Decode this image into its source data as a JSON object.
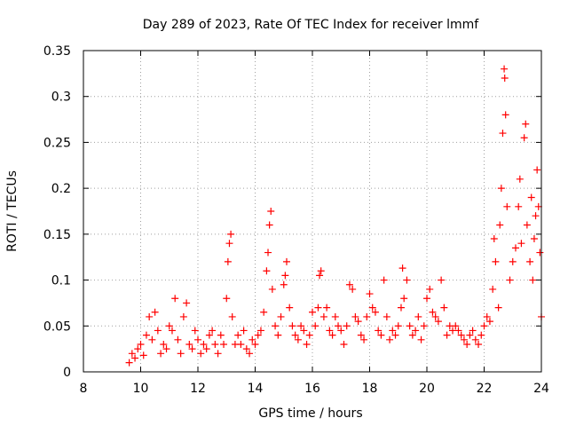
{
  "chart_data": {
    "type": "scatter",
    "title": "Day 289 of 2023, Rate Of TEC Index for receiver lmmf",
    "xlabel": "GPS time / hours",
    "ylabel": "ROTI / TECUs",
    "xlim": [
      8,
      24
    ],
    "ylim": [
      0,
      0.35
    ],
    "xticks": [
      "8",
      "10",
      "12",
      "14",
      "16",
      "18",
      "20",
      "22",
      "24"
    ],
    "yticks": [
      "0",
      "0.05",
      "0.1",
      "0.15",
      "0.2",
      "0.25",
      "0.3",
      "0.35"
    ],
    "grid": true,
    "marker": "+",
    "marker_color": "#ff0000",
    "series": [
      {
        "name": "ROTI",
        "points": [
          [
            9.6,
            0.01
          ],
          [
            9.7,
            0.02
          ],
          [
            9.8,
            0.015
          ],
          [
            9.9,
            0.025
          ],
          [
            10.0,
            0.03
          ],
          [
            10.1,
            0.018
          ],
          [
            10.2,
            0.04
          ],
          [
            10.3,
            0.06
          ],
          [
            10.4,
            0.035
          ],
          [
            10.5,
            0.065
          ],
          [
            10.6,
            0.045
          ],
          [
            10.7,
            0.02
          ],
          [
            10.8,
            0.03
          ],
          [
            10.9,
            0.025
          ],
          [
            11.0,
            0.05
          ],
          [
            11.1,
            0.045
          ],
          [
            11.2,
            0.08
          ],
          [
            11.3,
            0.035
          ],
          [
            11.4,
            0.02
          ],
          [
            11.5,
            0.06
          ],
          [
            11.6,
            0.075
          ],
          [
            11.7,
            0.03
          ],
          [
            11.8,
            0.025
          ],
          [
            11.9,
            0.045
          ],
          [
            12.0,
            0.035
          ],
          [
            12.1,
            0.02
          ],
          [
            12.2,
            0.03
          ],
          [
            12.3,
            0.025
          ],
          [
            12.4,
            0.04
          ],
          [
            12.5,
            0.045
          ],
          [
            12.6,
            0.03
          ],
          [
            12.7,
            0.02
          ],
          [
            12.8,
            0.04
          ],
          [
            12.9,
            0.03
          ],
          [
            13.0,
            0.08
          ],
          [
            13.05,
            0.12
          ],
          [
            13.1,
            0.14
          ],
          [
            13.15,
            0.15
          ],
          [
            13.2,
            0.06
          ],
          [
            13.3,
            0.03
          ],
          [
            13.4,
            0.04
          ],
          [
            13.5,
            0.03
          ],
          [
            13.6,
            0.045
          ],
          [
            13.7,
            0.025
          ],
          [
            13.8,
            0.02
          ],
          [
            13.9,
            0.035
          ],
          [
            14.0,
            0.03
          ],
          [
            14.1,
            0.04
          ],
          [
            14.2,
            0.045
          ],
          [
            14.3,
            0.065
          ],
          [
            14.4,
            0.11
          ],
          [
            14.45,
            0.13
          ],
          [
            14.5,
            0.16
          ],
          [
            14.55,
            0.175
          ],
          [
            14.6,
            0.09
          ],
          [
            14.7,
            0.05
          ],
          [
            14.8,
            0.04
          ],
          [
            14.9,
            0.06
          ],
          [
            15.0,
            0.095
          ],
          [
            15.05,
            0.105
          ],
          [
            15.1,
            0.12
          ],
          [
            15.2,
            0.07
          ],
          [
            15.3,
            0.05
          ],
          [
            15.4,
            0.04
          ],
          [
            15.5,
            0.035
          ],
          [
            15.6,
            0.05
          ],
          [
            15.7,
            0.045
          ],
          [
            15.8,
            0.03
          ],
          [
            15.9,
            0.04
          ],
          [
            16.0,
            0.065
          ],
          [
            16.1,
            0.05
          ],
          [
            16.2,
            0.07
          ],
          [
            16.25,
            0.105
          ],
          [
            16.3,
            0.11
          ],
          [
            16.4,
            0.06
          ],
          [
            16.5,
            0.07
          ],
          [
            16.6,
            0.045
          ],
          [
            16.7,
            0.04
          ],
          [
            16.8,
            0.06
          ],
          [
            16.9,
            0.05
          ],
          [
            17.0,
            0.045
          ],
          [
            17.1,
            0.03
          ],
          [
            17.2,
            0.05
          ],
          [
            17.3,
            0.095
          ],
          [
            17.4,
            0.09
          ],
          [
            17.5,
            0.06
          ],
          [
            17.6,
            0.055
          ],
          [
            17.7,
            0.04
          ],
          [
            17.8,
            0.035
          ],
          [
            17.9,
            0.06
          ],
          [
            18.0,
            0.085
          ],
          [
            18.1,
            0.07
          ],
          [
            18.2,
            0.065
          ],
          [
            18.3,
            0.045
          ],
          [
            18.4,
            0.04
          ],
          [
            18.5,
            0.1
          ],
          [
            18.6,
            0.06
          ],
          [
            18.7,
            0.035
          ],
          [
            18.8,
            0.045
          ],
          [
            18.9,
            0.04
          ],
          [
            19.0,
            0.05
          ],
          [
            19.1,
            0.07
          ],
          [
            19.15,
            0.113
          ],
          [
            19.2,
            0.08
          ],
          [
            19.3,
            0.1
          ],
          [
            19.4,
            0.05
          ],
          [
            19.5,
            0.04
          ],
          [
            19.6,
            0.045
          ],
          [
            19.7,
            0.06
          ],
          [
            19.8,
            0.035
          ],
          [
            19.9,
            0.05
          ],
          [
            20.0,
            0.08
          ],
          [
            20.1,
            0.09
          ],
          [
            20.2,
            0.065
          ],
          [
            20.3,
            0.06
          ],
          [
            20.4,
            0.055
          ],
          [
            20.5,
            0.1
          ],
          [
            20.6,
            0.07
          ],
          [
            20.7,
            0.04
          ],
          [
            20.8,
            0.05
          ],
          [
            20.9,
            0.045
          ],
          [
            21.0,
            0.05
          ],
          [
            21.1,
            0.045
          ],
          [
            21.2,
            0.04
          ],
          [
            21.3,
            0.035
          ],
          [
            21.4,
            0.03
          ],
          [
            21.5,
            0.04
          ],
          [
            21.6,
            0.045
          ],
          [
            21.7,
            0.035
          ],
          [
            21.8,
            0.03
          ],
          [
            21.9,
            0.04
          ],
          [
            22.0,
            0.05
          ],
          [
            22.1,
            0.06
          ],
          [
            22.2,
            0.055
          ],
          [
            22.3,
            0.09
          ],
          [
            22.35,
            0.145
          ],
          [
            22.4,
            0.12
          ],
          [
            22.5,
            0.07
          ],
          [
            22.55,
            0.16
          ],
          [
            22.6,
            0.2
          ],
          [
            22.65,
            0.26
          ],
          [
            22.7,
            0.33
          ],
          [
            22.72,
            0.32
          ],
          [
            22.75,
            0.28
          ],
          [
            22.8,
            0.18
          ],
          [
            22.9,
            0.1
          ],
          [
            23.0,
            0.12
          ],
          [
            23.1,
            0.135
          ],
          [
            23.2,
            0.18
          ],
          [
            23.25,
            0.21
          ],
          [
            23.3,
            0.14
          ],
          [
            23.4,
            0.255
          ],
          [
            23.45,
            0.27
          ],
          [
            23.5,
            0.16
          ],
          [
            23.6,
            0.12
          ],
          [
            23.65,
            0.19
          ],
          [
            23.7,
            0.1
          ],
          [
            23.75,
            0.145
          ],
          [
            23.8,
            0.17
          ],
          [
            23.85,
            0.22
          ],
          [
            23.9,
            0.18
          ],
          [
            23.95,
            0.13
          ],
          [
            24.0,
            0.06
          ]
        ]
      }
    ]
  }
}
